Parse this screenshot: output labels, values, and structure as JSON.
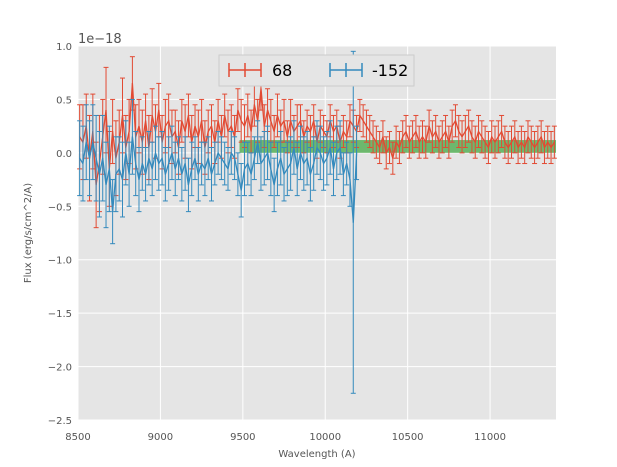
{
  "chart_data": {
    "type": "line",
    "xlabel": "Wavelength (A)",
    "ylabel": "Flux (erg/s/cm^2/A)",
    "y_offset_label": "1e−18",
    "y_scale": 1e-18,
    "xlim": [
      8500,
      11400
    ],
    "ylim": [
      -2.5,
      1.0
    ],
    "x_ticks": [
      8500,
      9000,
      9500,
      10000,
      10500,
      11000
    ],
    "x_tick_labels": [
      "8500",
      "9000",
      "9500",
      "10000",
      "10500",
      "11000"
    ],
    "y_ticks": [
      -2.5,
      -2.0,
      -1.5,
      -1.0,
      -0.5,
      0.0,
      0.5,
      1.0
    ],
    "y_tick_labels": [
      "−2.5",
      "−2.0",
      "−1.5",
      "−1.0",
      "−0.5",
      "0.0",
      "0.5",
      "1.0"
    ],
    "grid": true,
    "legend": {
      "placement": "top-center",
      "columns": 2
    },
    "band": {
      "x_start": 9480,
      "x_end": 11400,
      "y_low": 0.0,
      "y_high": 0.12,
      "color": "#2ca02c"
    },
    "series": [
      {
        "name": "68",
        "color": "#e24a33",
        "x": [
          8510,
          8530,
          8550,
          8570,
          8590,
          8610,
          8630,
          8650,
          8670,
          8690,
          8710,
          8730,
          8750,
          8770,
          8790,
          8810,
          8830,
          8850,
          8870,
          8890,
          8910,
          8930,
          8950,
          8970,
          8990,
          9010,
          9030,
          9050,
          9070,
          9090,
          9110,
          9130,
          9150,
          9170,
          9190,
          9210,
          9230,
          9250,
          9270,
          9290,
          9310,
          9330,
          9350,
          9370,
          9390,
          9410,
          9430,
          9450,
          9470,
          9490,
          9510,
          9530,
          9550,
          9570,
          9590,
          9610,
          9630,
          9650,
          9670,
          9690,
          9710,
          9730,
          9750,
          9770,
          9790,
          9810,
          9830,
          9850,
          9870,
          9890,
          9910,
          9930,
          9950,
          9970,
          9990,
          10010,
          10030,
          10050,
          10070,
          10090,
          10110,
          10130,
          10150,
          10170,
          10190,
          10210,
          10230,
          10250,
          10270,
          10290,
          10310,
          10330,
          10350,
          10370,
          10390,
          10410,
          10430,
          10450,
          10470,
          10490,
          10510,
          10530,
          10550,
          10570,
          10590,
          10610,
          10630,
          10650,
          10670,
          10690,
          10710,
          10730,
          10750,
          10770,
          10790,
          10810,
          10830,
          10850,
          10870,
          10890,
          10910,
          10930,
          10950,
          10970,
          10990,
          11010,
          11030,
          11050,
          11070,
          11090,
          11110,
          11130,
          11150,
          11170,
          11190,
          11210,
          11230,
          11250,
          11270,
          11290,
          11310,
          11330,
          11350,
          11370,
          11390
        ],
        "y": [
          0.15,
          0.1,
          0.25,
          -0.05,
          0.2,
          -0.3,
          -0.1,
          0.15,
          0.4,
          -0.15,
          0.2,
          -0.05,
          0.1,
          0.35,
          0.05,
          0.2,
          0.65,
          0.15,
          0.25,
          0.1,
          0.3,
          0.05,
          0.35,
          0.2,
          0.4,
          0.1,
          0.25,
          0.3,
          0.15,
          0.2,
          0.05,
          0.3,
          0.2,
          0.35,
          0.1,
          0.25,
          0.15,
          0.3,
          0.05,
          0.2,
          0.25,
          0.1,
          0.3,
          0.15,
          0.35,
          0.2,
          0.25,
          0.15,
          0.4,
          0.3,
          0.25,
          0.35,
          0.2,
          0.45,
          0.3,
          0.6,
          0.25,
          0.4,
          0.3,
          0.2,
          0.35,
          0.25,
          0.3,
          0.15,
          0.3,
          0.2,
          0.25,
          0.3,
          0.15,
          0.25,
          0.2,
          0.3,
          0.1,
          0.25,
          0.2,
          0.15,
          0.3,
          0.2,
          0.25,
          0.1,
          0.2,
          0.15,
          0.3,
          0.25,
          0.2,
          0.35,
          0.3,
          0.25,
          0.2,
          0.15,
          0.1,
          0.05,
          0.15,
          0.0,
          0.05,
          -0.05,
          0.1,
          0.05,
          0.15,
          0.2,
          0.1,
          0.15,
          0.2,
          0.1,
          0.15,
          0.1,
          0.25,
          0.15,
          0.2,
          0.1,
          0.15,
          0.2,
          0.1,
          0.25,
          0.3,
          0.2,
          0.15,
          0.2,
          0.25,
          0.15,
          0.1,
          0.2,
          0.15,
          0.1,
          0.05,
          0.15,
          0.1,
          0.15,
          0.2,
          0.1,
          0.05,
          0.1,
          0.15,
          0.05,
          0.1,
          0.05,
          0.15,
          0.1,
          0.05,
          0.1,
          0.15,
          0.05,
          0.1,
          0.05,
          0.1
        ],
        "yerr": [
          0.3,
          0.35,
          0.3,
          0.4,
          0.35,
          0.4,
          0.45,
          0.35,
          0.4,
          0.35,
          0.3,
          0.35,
          0.3,
          0.35,
          0.3,
          0.3,
          0.25,
          0.3,
          0.25,
          0.3,
          0.25,
          0.3,
          0.25,
          0.25,
          0.25,
          0.25,
          0.25,
          0.25,
          0.25,
          0.2,
          0.25,
          0.2,
          0.25,
          0.2,
          0.25,
          0.2,
          0.25,
          0.2,
          0.25,
          0.2,
          0.2,
          0.2,
          0.2,
          0.2,
          0.2,
          0.2,
          0.2,
          0.2,
          0.2,
          0.2,
          0.2,
          0.2,
          0.2,
          0.2,
          0.2,
          0.2,
          0.2,
          0.2,
          0.2,
          0.15,
          0.2,
          0.15,
          0.2,
          0.15,
          0.2,
          0.15,
          0.2,
          0.15,
          0.15,
          0.15,
          0.15,
          0.15,
          0.15,
          0.15,
          0.15,
          0.15,
          0.15,
          0.15,
          0.15,
          0.15,
          0.15,
          0.15,
          0.15,
          0.15,
          0.15,
          0.15,
          0.15,
          0.15,
          0.15,
          0.15,
          0.15,
          0.15,
          0.15,
          0.15,
          0.15,
          0.15,
          0.15,
          0.15,
          0.15,
          0.15,
          0.15,
          0.15,
          0.15,
          0.15,
          0.15,
          0.15,
          0.15,
          0.15,
          0.15,
          0.15,
          0.15,
          0.15,
          0.15,
          0.15,
          0.15,
          0.15,
          0.15,
          0.15,
          0.15,
          0.15,
          0.15,
          0.15,
          0.15,
          0.15,
          0.15,
          0.15,
          0.15,
          0.15,
          0.15,
          0.15,
          0.15,
          0.15,
          0.15,
          0.15,
          0.15,
          0.15,
          0.15,
          0.15,
          0.15,
          0.15,
          0.15,
          0.15,
          0.15,
          0.15,
          0.15
        ]
      },
      {
        "name": "-152",
        "color": "#348abd",
        "x": [
          8510,
          8530,
          8550,
          8570,
          8590,
          8610,
          8630,
          8650,
          8670,
          8690,
          8710,
          8730,
          8750,
          8770,
          8790,
          8810,
          8830,
          8850,
          8870,
          8890,
          8910,
          8930,
          8950,
          8970,
          8990,
          9010,
          9030,
          9050,
          9070,
          9090,
          9110,
          9130,
          9150,
          9170,
          9190,
          9210,
          9230,
          9250,
          9270,
          9290,
          9310,
          9330,
          9350,
          9370,
          9390,
          9410,
          9430,
          9450,
          9470,
          9490,
          9510,
          9530,
          9550,
          9570,
          9590,
          9610,
          9630,
          9650,
          9670,
          9690,
          9710,
          9730,
          9750,
          9770,
          9790,
          9810,
          9830,
          9850,
          9870,
          9890,
          9910,
          9930,
          9950,
          9970,
          9990,
          10010,
          10030,
          10050,
          10070,
          10090,
          10110,
          10130,
          10150,
          10170,
          10190
        ],
        "y": [
          -0.05,
          -0.1,
          0.1,
          -0.05,
          0.1,
          -0.05,
          -0.2,
          -0.05,
          -0.3,
          -0.15,
          -0.55,
          -0.2,
          -0.15,
          -0.25,
          0.0,
          -0.2,
          0.15,
          -0.1,
          -0.25,
          -0.1,
          -0.2,
          -0.05,
          -0.15,
          0.0,
          -0.1,
          -0.05,
          -0.2,
          -0.1,
          0.0,
          -0.15,
          -0.05,
          -0.2,
          -0.1,
          -0.3,
          -0.15,
          -0.05,
          -0.2,
          -0.1,
          -0.15,
          -0.05,
          -0.2,
          -0.1,
          0.0,
          -0.05,
          -0.1,
          -0.15,
          0.0,
          -0.05,
          -0.2,
          -0.35,
          -0.15,
          -0.1,
          -0.2,
          -0.05,
          0.1,
          -0.1,
          -0.05,
          0.0,
          -0.15,
          -0.3,
          -0.15,
          -0.05,
          -0.2,
          -0.15,
          -0.1,
          0.05,
          -0.15,
          0.0,
          -0.1,
          -0.05,
          -0.2,
          -0.1,
          0.05,
          0.0,
          -0.1,
          -0.05,
          0.05,
          -0.15,
          0.0,
          0.05,
          -0.2,
          -0.1,
          -0.25,
          -0.65,
          0.0
        ],
        "yerr": [
          0.35,
          0.35,
          0.35,
          0.35,
          0.35,
          0.4,
          0.4,
          0.4,
          0.4,
          0.4,
          0.3,
          0.35,
          0.3,
          0.35,
          0.3,
          0.3,
          0.35,
          0.3,
          0.3,
          0.25,
          0.25,
          0.25,
          0.25,
          0.25,
          0.25,
          0.25,
          0.25,
          0.25,
          0.25,
          0.25,
          0.2,
          0.25,
          0.25,
          0.25,
          0.25,
          0.2,
          0.25,
          0.2,
          0.25,
          0.2,
          0.25,
          0.2,
          0.2,
          0.2,
          0.2,
          0.2,
          0.2,
          0.2,
          0.2,
          0.25,
          0.25,
          0.2,
          0.2,
          0.2,
          0.2,
          0.25,
          0.25,
          0.25,
          0.25,
          0.25,
          0.25,
          0.25,
          0.25,
          0.25,
          0.25,
          0.25,
          0.25,
          0.25,
          0.25,
          0.25,
          0.25,
          0.25,
          0.25,
          0.25,
          0.25,
          0.25,
          0.25,
          0.25,
          0.25,
          0.25,
          0.2,
          0.2,
          0.25,
          1.6,
          0.25
        ]
      }
    ]
  }
}
